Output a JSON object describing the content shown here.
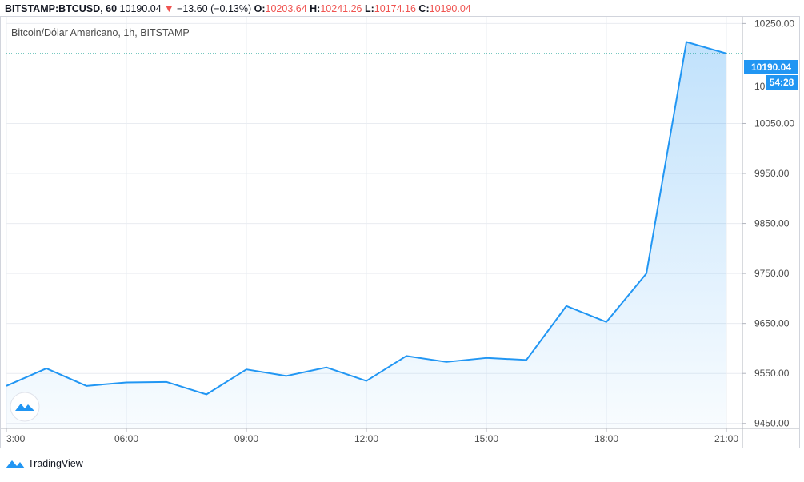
{
  "header": {
    "symbol": "BITSTAMP:BTCUSD, 60",
    "last": "10190.04",
    "change": "−13.60 (−0.13%)",
    "o_label": "O:",
    "o_value": "10203.64",
    "h_label": "H:",
    "h_value": "10241.26",
    "l_label": "L:",
    "l_value": "10174.16",
    "c_label": "C:",
    "c_value": "10190.04",
    "down_color": "#ef5350"
  },
  "subtitle": "Bitcoin/Dólar Americano, 1h, BITSTAMP",
  "price_badge": {
    "price": "10190.04",
    "countdown": "54:28",
    "partial_tick": "10"
  },
  "footer": {
    "brand": "TradingView",
    "logo_icon": "tradingview-cloud-icon"
  },
  "colors": {
    "line": "#2196f3",
    "badge": "#2196f3",
    "grid": "#e9ecf1",
    "axis_text": "#4a4a4a"
  },
  "chart_data": {
    "type": "area",
    "x": [
      "03:00",
      "04:00",
      "05:00",
      "06:00",
      "07:00",
      "08:00",
      "09:00",
      "10:00",
      "11:00",
      "12:00",
      "13:00",
      "14:00",
      "15:00",
      "16:00",
      "17:00",
      "18:00",
      "19:00",
      "20:00",
      "21:00"
    ],
    "y": [
      9525,
      9560,
      9525,
      9532,
      9533,
      9508,
      9558,
      9545,
      9562,
      9535,
      9585,
      9573,
      9581,
      9577,
      9685,
      9653,
      9750,
      10213,
      10190.04
    ],
    "x_ticks": [
      "3:00",
      "06:00",
      "09:00",
      "12:00",
      "15:00",
      "18:00",
      "21:00"
    ],
    "x_tick_hours": [
      3,
      6,
      9,
      12,
      15,
      18,
      21
    ],
    "y_ticks": [
      "9450.00",
      "9550.00",
      "9650.00",
      "9750.00",
      "9850.00",
      "9950.00",
      "10050.00",
      "10250.00"
    ],
    "y_tick_values": [
      9450,
      9550,
      9650,
      9750,
      9850,
      9950,
      10050,
      10250
    ],
    "ylim": [
      9440,
      10265
    ],
    "xlim_hours": [
      3,
      21.4
    ],
    "last_price": 10190.04,
    "grid": true
  }
}
